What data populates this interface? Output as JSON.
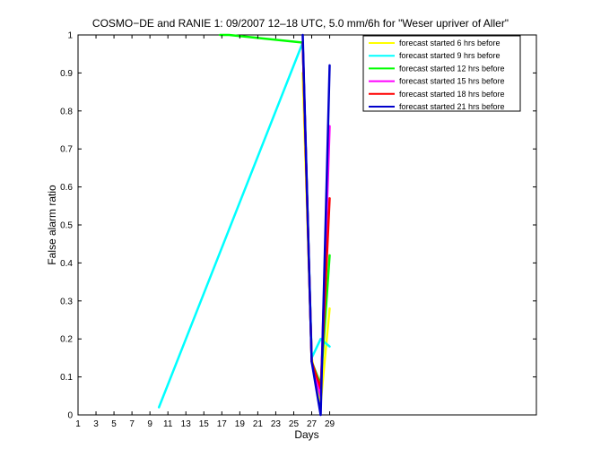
{
  "chart_data": {
    "type": "line",
    "title": "COSMO−DE and RANIE 1: 09/2007 12–18 UTC, 5.0 mm/6h for \"Weser upriver of Aller\"",
    "xlabel": "Days",
    "ylabel": "False alarm ratio",
    "xlim": [
      1,
      52
    ],
    "ylim": [
      0,
      1
    ],
    "xticks": [
      1,
      3,
      5,
      7,
      9,
      11,
      13,
      15,
      17,
      19,
      21,
      23,
      25,
      27,
      29
    ],
    "xtick_labels": [
      "1",
      "3",
      "5",
      "7",
      "9",
      "11",
      "13",
      "15",
      "17",
      "19",
      "21",
      "23",
      "25",
      "27",
      "29"
    ],
    "yticks": [
      0,
      0.1,
      0.2,
      0.3,
      0.4,
      0.5,
      0.6,
      0.7,
      0.8,
      0.9,
      1
    ],
    "ytick_labels": [
      "0",
      "0.1",
      "0.2",
      "0.3",
      "0.4",
      "0.5",
      "0.6",
      "0.7",
      "0.8",
      "0.9",
      "1"
    ],
    "grid": false,
    "legend_position": "top-right",
    "series": [
      {
        "name": "forecast started 6 hrs before",
        "color": "#ffff00",
        "x": [
          26,
          27,
          28,
          29
        ],
        "y": [
          0.9,
          0.15,
          0.03,
          0.28
        ]
      },
      {
        "name": "forecast started 9 hrs before",
        "color": "#00ffff",
        "x": [
          10,
          26,
          27,
          28,
          29
        ],
        "y": [
          0.02,
          0.98,
          0.15,
          0.2,
          0.18
        ]
      },
      {
        "name": "forecast started 12 hrs before",
        "color": "#00ff00",
        "x": [
          16.8,
          17.8,
          26,
          27,
          28,
          29
        ],
        "y": [
          1.0,
          1.0,
          0.98,
          0.14,
          0.08,
          0.42
        ]
      },
      {
        "name": "forecast started 15 hrs before",
        "color": "#ff00ff",
        "x": [
          26,
          27,
          28,
          29
        ],
        "y": [
          0.98,
          0.14,
          0.05,
          0.76
        ]
      },
      {
        "name": "forecast started 18 hrs before",
        "color": "#ff0000",
        "x": [
          26,
          27,
          28,
          29
        ],
        "y": [
          0.98,
          0.14,
          0.07,
          0.57
        ]
      },
      {
        "name": "forecast started 21 hrs before",
        "color": "#0000cc",
        "x": [
          26,
          27,
          28,
          29
        ],
        "y": [
          1.0,
          0.14,
          0.0,
          0.92
        ]
      }
    ]
  }
}
